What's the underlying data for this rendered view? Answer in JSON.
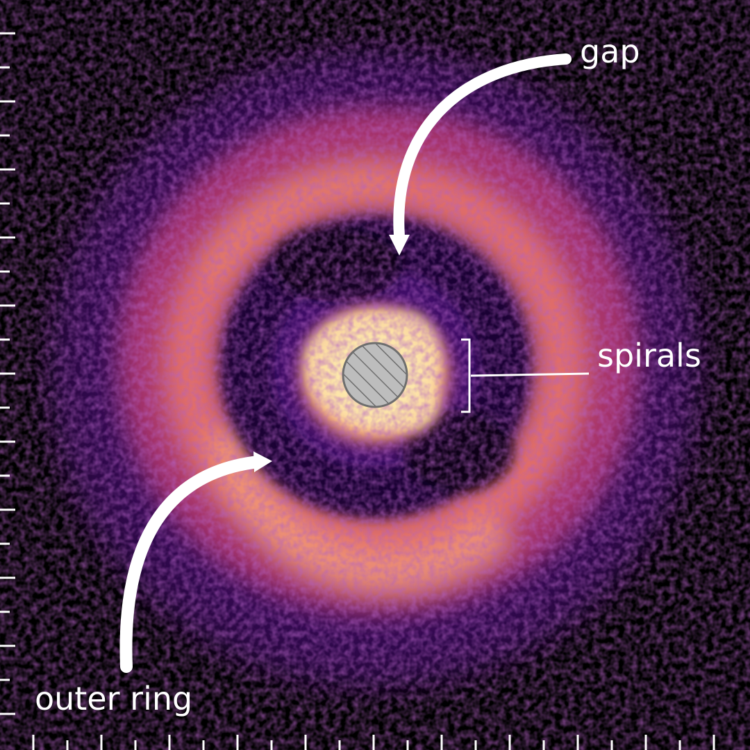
{
  "image": {
    "subject": "disk",
    "colors": {
      "background": "#000000",
      "annotation": "#ffffff",
      "coronagraph_fill": "#bdbdbd",
      "coronagraph_edge": "#6e6e6e"
    }
  },
  "annotations": {
    "gap": "gap",
    "spirals": "spirals",
    "outer_ring": "outer ring"
  },
  "axes": {
    "left_ticks": "unlabeled",
    "bottom_ticks": "unlabeled"
  }
}
